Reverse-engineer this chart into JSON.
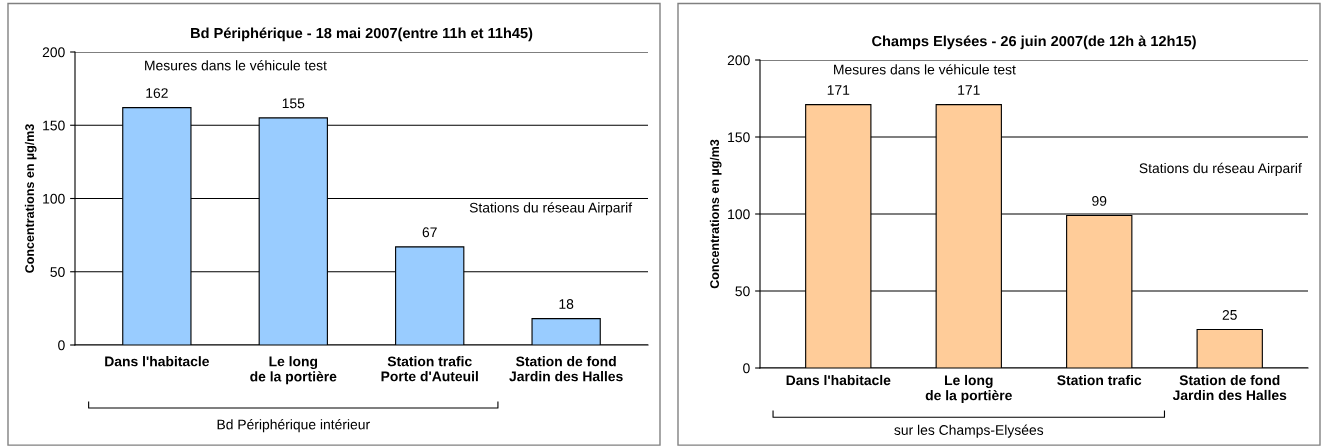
{
  "chart_data": [
    {
      "type": "bar",
      "title": "Bd Périphérique - 18 mai 2007(entre 11h et 11h45)",
      "ylabel": "Concentrations en µg/m3",
      "categories": [
        "Dans l'habitacle",
        "Le long\nde la portière",
        "Station trafic\nPorte d'Auteuil",
        "Station de fond\nJardin des Halles"
      ],
      "values": [
        162,
        155,
        67,
        18
      ],
      "colors": [
        "#99ccff",
        "#99ccff",
        "#99ccff",
        "#99ccff"
      ],
      "ylim": [
        0,
        200
      ],
      "yticks": [
        0,
        50,
        100,
        150,
        200
      ],
      "grid": "y",
      "data_labels": true,
      "annotations": [
        "Mesures dans le véhicule test",
        "Stations du réseau Airparif",
        "Bd Périphérique intérieur"
      ]
    },
    {
      "type": "bar",
      "title": "Champs Elysées - 26 juin 2007(de 12h à 12h15)",
      "ylabel": "Concentrations en µg/m3",
      "categories": [
        "Dans l'habitacle",
        "Le long\nde la portière",
        "Station trafic",
        "Station de fond\nJardin des Halles"
      ],
      "values": [
        171,
        171,
        99,
        25
      ],
      "colors": [
        "#ffcc99",
        "#ffcc99",
        "#ffcc99",
        "#ffcc99"
      ],
      "ylim": [
        0,
        200
      ],
      "yticks": [
        0,
        50,
        100,
        150,
        200
      ],
      "grid": "y",
      "data_labels": true,
      "annotations": [
        "Mesures dans le véhicule test",
        "Stations du réseau Airparif",
        "sur les Champs-Elysées"
      ]
    }
  ]
}
